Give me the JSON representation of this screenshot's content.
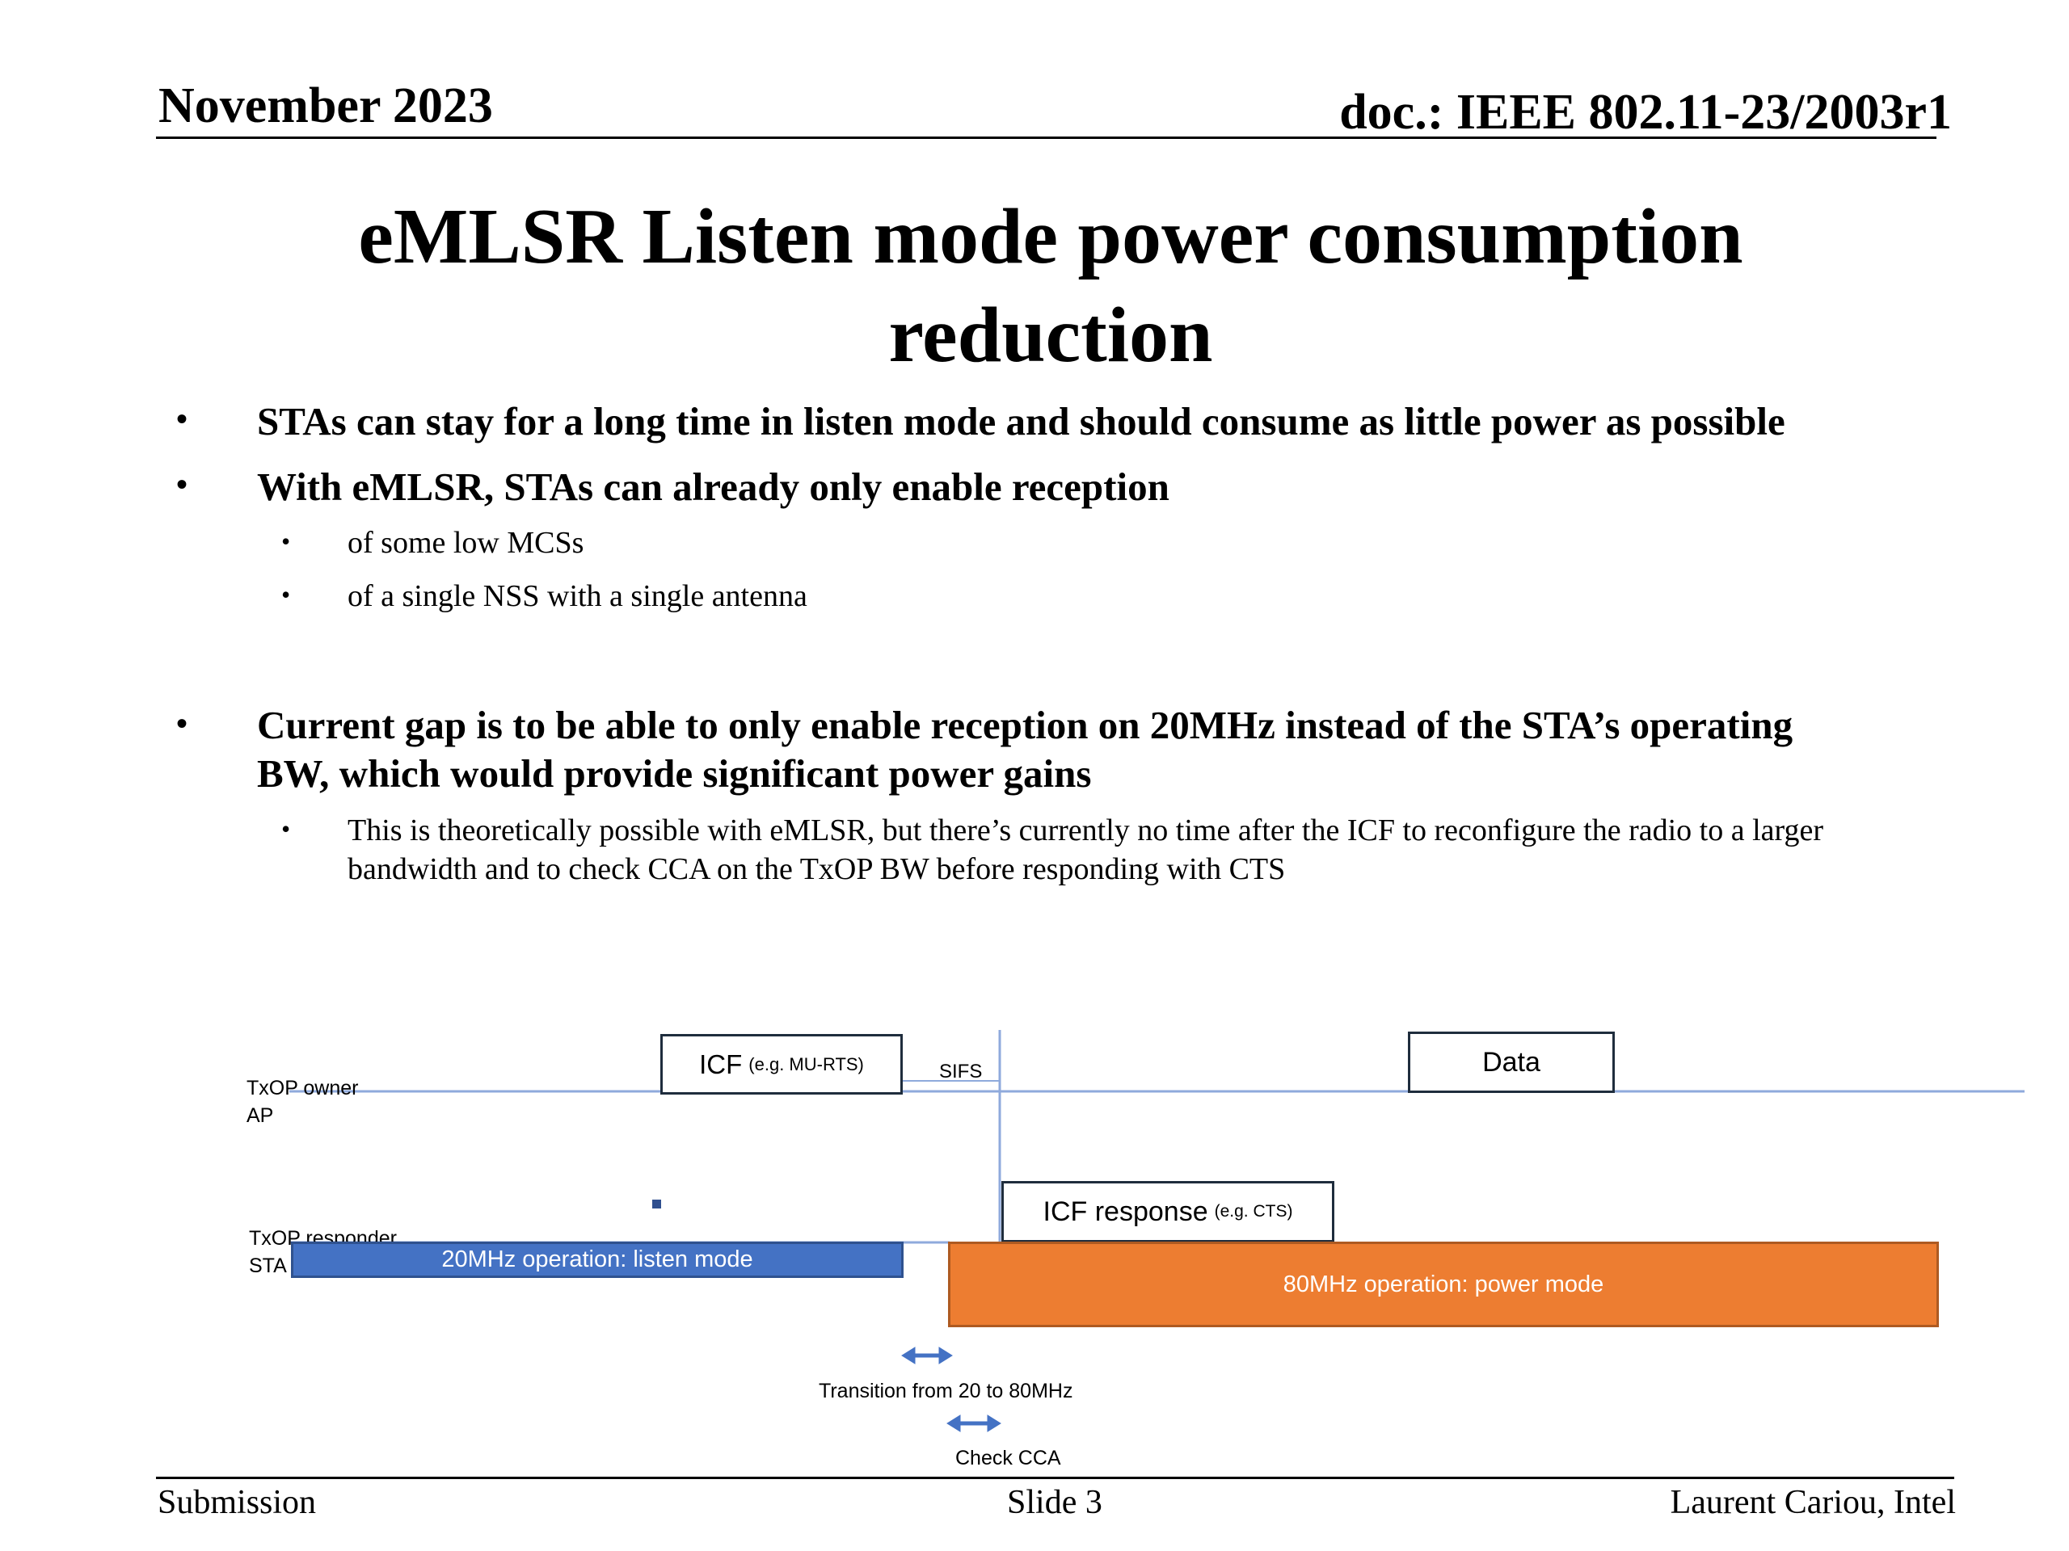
{
  "header": {
    "date": "November 2023",
    "doc": "doc.: IEEE 802.11-23/2003r1"
  },
  "title_line1": "eMLSR Listen mode power consumption",
  "title_line2": "reduction",
  "bullets": [
    {
      "text": "STAs can stay for a long time in listen mode and should consume as little power as possible"
    },
    {
      "text": "With eMLSR, STAs can already only enable reception",
      "sub": [
        "of some low MCSs",
        "of a single NSS with a single antenna"
      ]
    },
    {
      "line1": "Current gap is to be able to only enable reception on 20MHz instead of the STA’s operating",
      "line2": "BW, which would provide significant power gains",
      "sub_line1": "This is theoretically possible with eMLSR, but there’s currently no time after the ICF to reconfigure the radio to a larger",
      "sub_line2": "bandwidth and to check CCA on the TxOP BW before responding with CTS"
    }
  ],
  "diagram": {
    "ap_label1": "TxOP owner",
    "ap_label2": "AP",
    "sta_label1": "TxOP responder",
    "sta_label2": "STA",
    "icf_main": "ICF",
    "icf_sub": "(e.g. MU-RTS)",
    "sifs": "SIFS",
    "data": "Data",
    "icf_resp_main": "ICF response",
    "icf_resp_sub": "(e.g. CTS)",
    "listen_bar": "20MHz operation: listen mode",
    "power_bar": "80MHz operation: power mode",
    "transition": "Transition from 20 to 80MHz",
    "check_cca": "Check CCA",
    "colors": {
      "listen": "#4472c4",
      "power": "#ed7d31",
      "line": "#8faadc"
    }
  },
  "footer": {
    "left": "Submission",
    "center": "Slide 3",
    "right": "Laurent Cariou, Intel"
  }
}
